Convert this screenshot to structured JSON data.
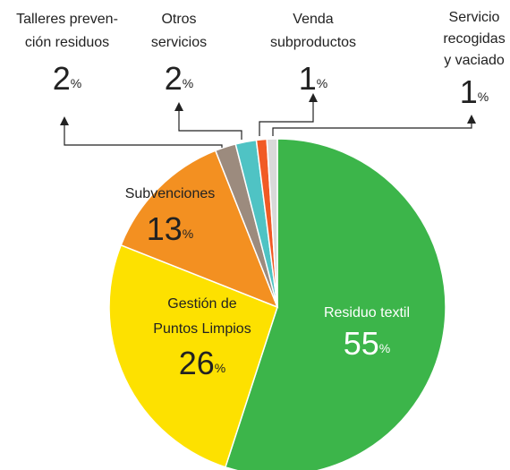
{
  "chart_data": {
    "type": "pie",
    "categories": [
      [
        "Residuo textil"
      ],
      [
        "Gestión de",
        "Puntos Limpios"
      ],
      [
        "Subvenciones"
      ],
      [
        "Talleres preven-",
        "ción residuos"
      ],
      [
        "Otros",
        "servicios"
      ],
      [
        "Venda",
        "subproductos"
      ],
      [
        "Servicio",
        "recogidas",
        "y vaciado"
      ]
    ],
    "values": [
      55,
      26,
      13,
      2,
      2,
      1,
      1
    ],
    "unit": "%",
    "colors": [
      "#3cb54a",
      "#fde100",
      "#f39021",
      "#9c8b7e",
      "#4fc3c4",
      "#f15a24",
      "#d9d9d9"
    ]
  }
}
